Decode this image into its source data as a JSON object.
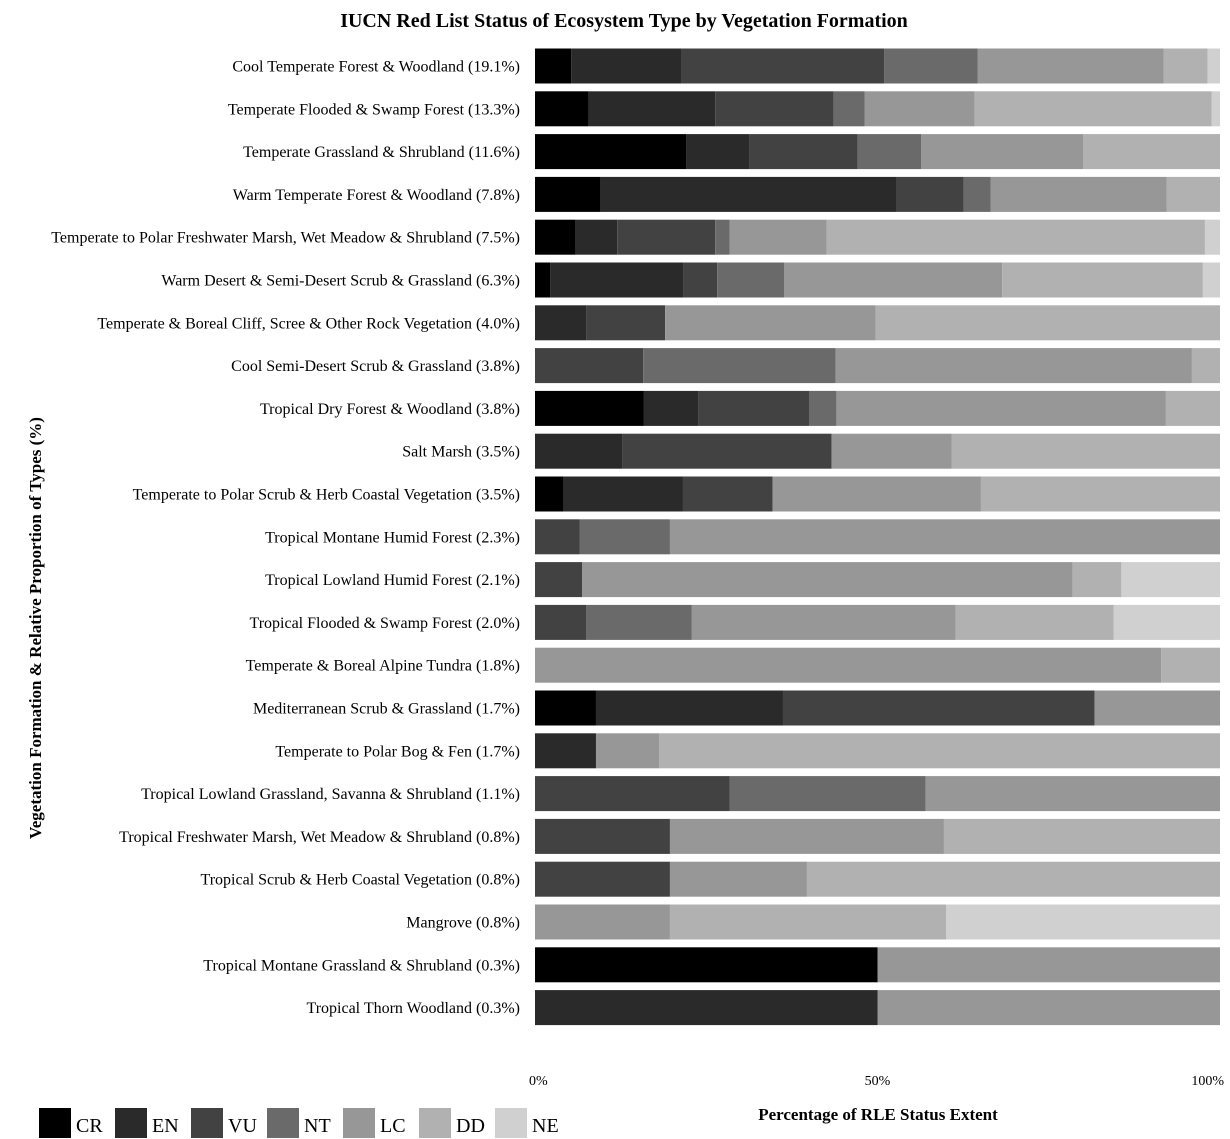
{
  "chart_data": {
    "type": "bar",
    "orientation": "horizontal",
    "stacked": true,
    "normalized": true,
    "title": "IUCN Red List Status of Ecosystem Type by Vegetation Formation",
    "xlabel": "Percentage of RLE Status Extent",
    "ylabel": "Vegetation Formation & Relative Proportion of Types (%)",
    "xlim": [
      0,
      100
    ],
    "x_ticks": [
      "0%",
      "50%",
      "100%"
    ],
    "grid": false,
    "legend_position": "bottom-left",
    "series": [
      {
        "name": "CR",
        "color": "#000000",
        "values": [
          5.3,
          7.8,
          22.1,
          9.6,
          5.9,
          2.2,
          0,
          0,
          15.9,
          0,
          4.2,
          0,
          0,
          0,
          0,
          8.9,
          0,
          0,
          0,
          0,
          0,
          50,
          0
        ]
      },
      {
        "name": "EN",
        "color": "#2a2a2a",
        "values": [
          16.1,
          18.5,
          9.2,
          43.1,
          6.1,
          19.5,
          7.5,
          0,
          8.0,
          12.8,
          17.4,
          0,
          0,
          0,
          0,
          27.3,
          8.9,
          0,
          0,
          0,
          0,
          0,
          50
        ]
      },
      {
        "name": "VU",
        "color": "#424242",
        "values": [
          29.6,
          17.3,
          15.8,
          9.9,
          14.3,
          4.9,
          11.5,
          15.8,
          16.1,
          30.5,
          13.1,
          6.5,
          6.9,
          7.5,
          0,
          45.5,
          0,
          28.4,
          19.7,
          19.7,
          0,
          0,
          0
        ]
      },
      {
        "name": "NT",
        "color": "#6a6a6a",
        "values": [
          13.6,
          4.5,
          9.3,
          3.9,
          2.1,
          9.8,
          0,
          28.1,
          4.0,
          0,
          0,
          13.2,
          0,
          15.4,
          0,
          0,
          0,
          28.6,
          0,
          0,
          0,
          0,
          0
        ]
      },
      {
        "name": "LC",
        "color": "#979797",
        "values": [
          27.2,
          16.1,
          23.6,
          25.7,
          14.2,
          31.8,
          30.7,
          52.0,
          48.1,
          17.5,
          30.4,
          80.3,
          71.6,
          38.5,
          91.4,
          18.3,
          9.2,
          43.0,
          40.0,
          20.0,
          19.7,
          50,
          50
        ]
      },
      {
        "name": "DD",
        "color": "#b1b1b1",
        "values": [
          6.4,
          34.6,
          20.0,
          7.8,
          55.2,
          29.3,
          50.3,
          4.1,
          7.9,
          39.2,
          34.9,
          0,
          7.1,
          23.1,
          8.6,
          0,
          81.9,
          0,
          40.3,
          60.3,
          40.3,
          0,
          0
        ]
      },
      {
        "name": "NE",
        "color": "#d0d0d0",
        "values": [
          1.8,
          1.2,
          0,
          0,
          2.2,
          2.5,
          0,
          0,
          0,
          0,
          0,
          0,
          14.4,
          15.5,
          0,
          0,
          0,
          0,
          0,
          0,
          40.0,
          0,
          0
        ]
      }
    ],
    "categories": [
      "Cool Temperate Forest & Woodland (19.1%)",
      "Temperate Flooded & Swamp Forest (13.3%)",
      "Temperate Grassland & Shrubland (11.6%)",
      "Warm Temperate Forest & Woodland (7.8%)",
      "Temperate to Polar Freshwater Marsh, Wet Meadow & Shrubland (7.5%)",
      "Warm Desert & Semi-Desert Scrub & Grassland (6.3%)",
      "Temperate & Boreal Cliff, Scree & Other Rock Vegetation (4.0%)",
      "Cool Semi-Desert Scrub & Grassland (3.8%)",
      "Tropical Dry Forest & Woodland (3.8%)",
      "Salt Marsh (3.5%)",
      "Temperate to Polar Scrub & Herb Coastal Vegetation (3.5%)",
      "Tropical Montane Humid Forest (2.3%)",
      "Tropical Lowland Humid Forest (2.1%)",
      "Tropical Flooded & Swamp Forest (2.0%)",
      "Temperate & Boreal Alpine Tundra (1.8%)",
      "Mediterranean Scrub & Grassland (1.7%)",
      "Temperate to Polar Bog & Fen (1.7%)",
      "Tropical Lowland Grassland, Savanna & Shrubland (1.1%)",
      "Tropical Freshwater Marsh, Wet Meadow & Shrubland (0.8%)",
      "Tropical Scrub & Herb Coastal Vegetation (0.8%)",
      "Mangrove (0.8%)",
      "Tropical Montane Grassland & Shrubland (0.3%)",
      "Tropical Thorn Woodland (0.3%)"
    ]
  }
}
